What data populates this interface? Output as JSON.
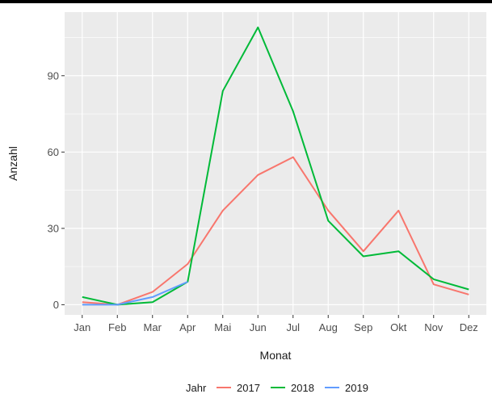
{
  "chart_data": {
    "type": "line",
    "xlabel": "Monat",
    "ylabel": "Anzahl",
    "categories": [
      "Jan",
      "Feb",
      "Mar",
      "Apr",
      "Mai",
      "Jun",
      "Jul",
      "Aug",
      "Sep",
      "Okt",
      "Nov",
      "Dez"
    ],
    "yticks": [
      "0",
      "30",
      "60",
      "90"
    ],
    "ylim": [
      -4,
      115
    ],
    "grid": true,
    "legend": {
      "title": "Jahr",
      "placement": "bottom"
    },
    "series": [
      {
        "name": "2017",
        "color": "#f8766d",
        "values": [
          1,
          0,
          5,
          16,
          37,
          51,
          58,
          37,
          21,
          37,
          8,
          4
        ]
      },
      {
        "name": "2018",
        "color": "#00ba38",
        "values": [
          3,
          0,
          1,
          9,
          84,
          109,
          76,
          33,
          19,
          21,
          10,
          6
        ]
      },
      {
        "name": "2019",
        "color": "#619cff",
        "values": [
          0,
          0,
          3,
          9,
          null,
          null,
          null,
          null,
          null,
          null,
          null,
          null
        ]
      }
    ]
  }
}
